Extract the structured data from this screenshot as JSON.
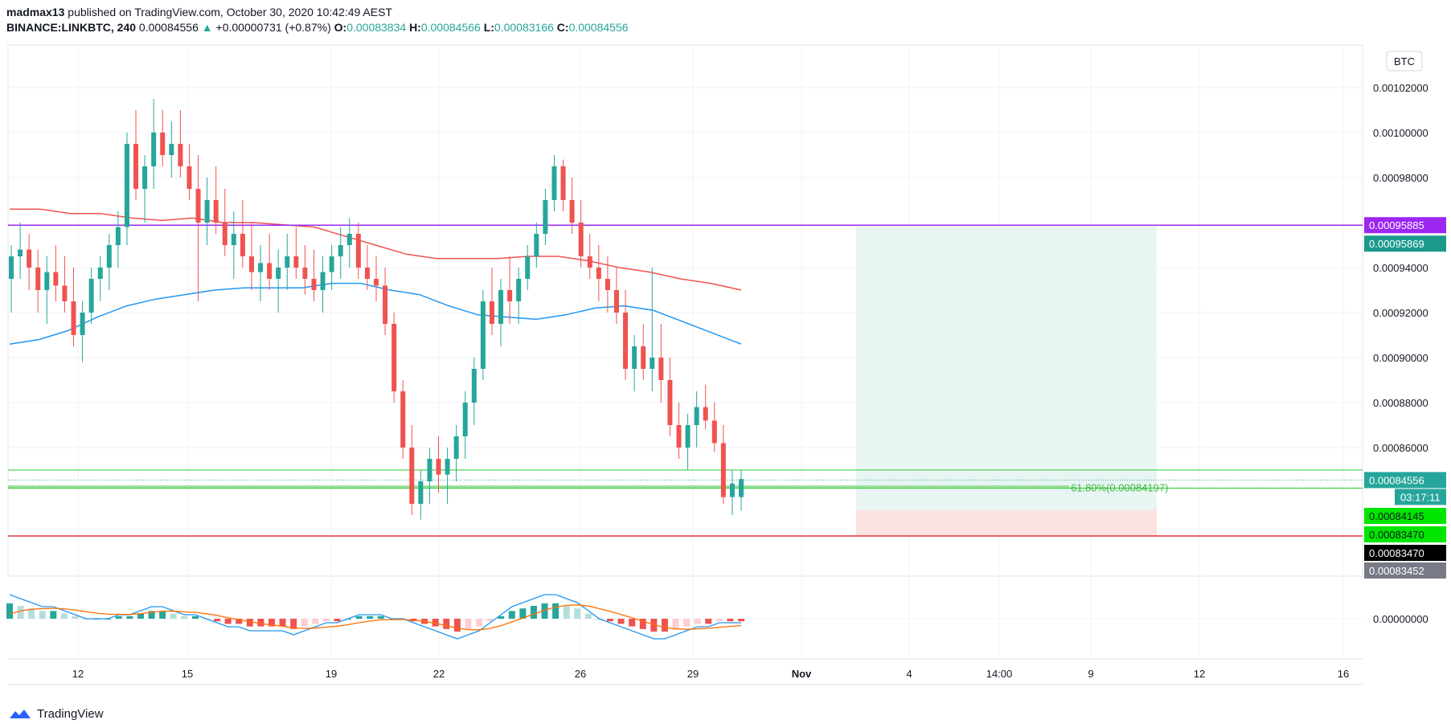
{
  "header": {
    "publisher": "madmax13",
    "published_text": "published on TradingView.com, October 30, 2020 10:42:49 AEST",
    "symbol": "BINANCE:LINKBTC, 240",
    "last": "0.00084556",
    "change": "+0.00000731 (+0.87%)",
    "o_label": "O:",
    "o": "0.00083834",
    "h_label": "H:",
    "h": "0.00084566",
    "l_label": "L:",
    "l": "0.00083166",
    "c_label": "C:",
    "c": "0.00084556"
  },
  "currency_label": "BTC",
  "footer_brand": "TradingView",
  "colors": {
    "up": "#26a69a",
    "down": "#ef5350",
    "ma_fast": "#2196f3",
    "ma_slow": "#ef5350",
    "purple": "#9c27f0",
    "green_line": "#3fd13f",
    "stop_line": "#e53935",
    "tp_zone": "#e8f5f2",
    "sl_zone": "#fde2e2"
  },
  "chart_data": {
    "type": "candlestick",
    "ylim": [
      0.00082,
      0.00104
    ],
    "y_ticks": [
      "0.00102000",
      "0.00100000",
      "0.00098000",
      "0.00094000",
      "0.00092000",
      "0.00090000",
      "0.00088000",
      "0.00086000"
    ],
    "x_ticks": [
      "12",
      "15",
      "19",
      "22",
      "26",
      "29",
      "Nov",
      "4",
      "14:00",
      "9",
      "12",
      "16"
    ],
    "ohlc": [
      [
        0.000935,
        0.00095,
        0.00092,
        0.000945
      ],
      [
        0.000945,
        0.00096,
        0.000935,
        0.000948
      ],
      [
        0.000948,
        0.000955,
        0.00093,
        0.00094
      ],
      [
        0.00094,
        0.000948,
        0.00092,
        0.00093
      ],
      [
        0.00093,
        0.000945,
        0.000915,
        0.000938
      ],
      [
        0.000938,
        0.00095,
        0.000925,
        0.000932
      ],
      [
        0.000932,
        0.000945,
        0.00092,
        0.000925
      ],
      [
        0.000925,
        0.00094,
        0.000905,
        0.00091
      ],
      [
        0.00091,
        0.000925,
        0.000898,
        0.00092
      ],
      [
        0.00092,
        0.00094,
        0.000915,
        0.000935
      ],
      [
        0.000935,
        0.000945,
        0.000925,
        0.00094
      ],
      [
        0.00094,
        0.000955,
        0.00093,
        0.00095
      ],
      [
        0.00095,
        0.000965,
        0.00094,
        0.000958
      ],
      [
        0.000958,
        0.001,
        0.00095,
        0.000995
      ],
      [
        0.000995,
        0.00101,
        0.00097,
        0.000975
      ],
      [
        0.000975,
        0.00099,
        0.00096,
        0.000985
      ],
      [
        0.000985,
        0.001015,
        0.000975,
        0.001
      ],
      [
        0.001,
        0.00101,
        0.000985,
        0.00099
      ],
      [
        0.00099,
        0.001005,
        0.00098,
        0.000995
      ],
      [
        0.000995,
        0.00101,
        0.00098,
        0.000985
      ],
      [
        0.000985,
        0.000995,
        0.00097,
        0.000975
      ],
      [
        0.000975,
        0.00099,
        0.000925,
        0.00096
      ],
      [
        0.00096,
        0.00098,
        0.00095,
        0.00097
      ],
      [
        0.00097,
        0.000985,
        0.000955,
        0.00096
      ],
      [
        0.00096,
        0.000975,
        0.000945,
        0.00095
      ],
      [
        0.00095,
        0.000965,
        0.000935,
        0.000955
      ],
      [
        0.000955,
        0.00097,
        0.00094,
        0.000945
      ],
      [
        0.000945,
        0.00096,
        0.00093,
        0.000938
      ],
      [
        0.000938,
        0.00095,
        0.000925,
        0.000942
      ],
      [
        0.000942,
        0.000955,
        0.00093,
        0.000935
      ],
      [
        0.000935,
        0.000948,
        0.00092,
        0.00094
      ],
      [
        0.00094,
        0.000955,
        0.00093,
        0.000945
      ],
      [
        0.000945,
        0.000958,
        0.000935,
        0.00094
      ],
      [
        0.00094,
        0.00095,
        0.000928,
        0.000935
      ],
      [
        0.000935,
        0.000948,
        0.000925,
        0.00093
      ],
      [
        0.00093,
        0.000945,
        0.00092,
        0.000938
      ],
      [
        0.000938,
        0.00095,
        0.00093,
        0.000945
      ],
      [
        0.000945,
        0.000958,
        0.000935,
        0.00095
      ],
      [
        0.00095,
        0.000962,
        0.00094,
        0.000955
      ],
      [
        0.000955,
        0.00096,
        0.000935,
        0.00094
      ],
      [
        0.00094,
        0.00095,
        0.00093,
        0.000935
      ],
      [
        0.000935,
        0.000945,
        0.000925,
        0.000932
      ],
      [
        0.000932,
        0.00094,
        0.00091,
        0.000915
      ],
      [
        0.000915,
        0.00092,
        0.00088,
        0.000885
      ],
      [
        0.000885,
        0.00089,
        0.000855,
        0.00086
      ],
      [
        0.00086,
        0.00087,
        0.00083,
        0.000835
      ],
      [
        0.000835,
        0.00085,
        0.000828,
        0.000845
      ],
      [
        0.000845,
        0.00086,
        0.000835,
        0.000855
      ],
      [
        0.000855,
        0.000865,
        0.00084,
        0.000848
      ],
      [
        0.000848,
        0.00086,
        0.000835,
        0.000855
      ],
      [
        0.000855,
        0.00087,
        0.000845,
        0.000865
      ],
      [
        0.000865,
        0.000885,
        0.000855,
        0.00088
      ],
      [
        0.00088,
        0.0009,
        0.00087,
        0.000895
      ],
      [
        0.000895,
        0.00093,
        0.00089,
        0.000925
      ],
      [
        0.000925,
        0.00094,
        0.00091,
        0.000915
      ],
      [
        0.000915,
        0.000935,
        0.000905,
        0.00093
      ],
      [
        0.00093,
        0.000945,
        0.000915,
        0.000925
      ],
      [
        0.000925,
        0.00094,
        0.000915,
        0.000935
      ],
      [
        0.000935,
        0.00095,
        0.00093,
        0.000945
      ],
      [
        0.000945,
        0.00096,
        0.00094,
        0.000955
      ],
      [
        0.000955,
        0.000975,
        0.00095,
        0.00097
      ],
      [
        0.00097,
        0.00099,
        0.000965,
        0.000985
      ],
      [
        0.000985,
        0.000988,
        0.000965,
        0.00097
      ],
      [
        0.00097,
        0.00098,
        0.000955,
        0.00096
      ],
      [
        0.00096,
        0.00097,
        0.00094,
        0.000945
      ],
      [
        0.000945,
        0.000955,
        0.000935,
        0.00094
      ],
      [
        0.00094,
        0.00095,
        0.000925,
        0.000935
      ],
      [
        0.000935,
        0.000945,
        0.00092,
        0.00093
      ],
      [
        0.00093,
        0.00094,
        0.000915,
        0.00092
      ],
      [
        0.00092,
        0.00093,
        0.00089,
        0.000895
      ],
      [
        0.000895,
        0.00091,
        0.000885,
        0.000905
      ],
      [
        0.000905,
        0.000915,
        0.00089,
        0.000895
      ],
      [
        0.000895,
        0.00094,
        0.000885,
        0.0009
      ],
      [
        0.0009,
        0.000915,
        0.00088,
        0.00089
      ],
      [
        0.00089,
        0.0009,
        0.000865,
        0.00087
      ],
      [
        0.00087,
        0.00088,
        0.000855,
        0.00086
      ],
      [
        0.00086,
        0.000875,
        0.00085,
        0.00087
      ],
      [
        0.00087,
        0.000885,
        0.00086,
        0.000878
      ],
      [
        0.000878,
        0.000888,
        0.000868,
        0.000872
      ],
      [
        0.000872,
        0.00088,
        0.000858,
        0.000862
      ],
      [
        0.000862,
        0.00087,
        0.000835,
        0.000838
      ],
      [
        0.000838,
        0.00085,
        0.00083,
        0.000844
      ],
      [
        0.000838,
        0.00085,
        0.000832,
        0.000846
      ]
    ],
    "ma_fast": [
      0.000906,
      0.000908,
      0.000912,
      0.000918,
      0.000923,
      0.000926,
      0.000928,
      0.00093,
      0.000931,
      0.000931,
      0.000931,
      0.000933,
      0.000933,
      0.00093,
      0.000928,
      0.000923,
      0.000919,
      0.000918,
      0.000917,
      0.000919,
      0.000922,
      0.000923,
      0.000921,
      0.000916,
      0.000911,
      0.000906
    ],
    "ma_slow": [
      0.000966,
      0.000966,
      0.000964,
      0.000964,
      0.000962,
      0.000961,
      0.000962,
      0.00096,
      0.00096,
      0.000959,
      0.000958,
      0.000954,
      0.00095,
      0.000946,
      0.000944,
      0.000944,
      0.000944,
      0.000945,
      0.000945,
      0.000943,
      0.00094,
      0.000938,
      0.000935,
      0.000933,
      0.00093
    ],
    "levels": {
      "purple": "0.00095885",
      "resistance_tag": "0.00095869",
      "last_price": "0.00084556",
      "countdown": "03:17:11",
      "fib_label": "61.80%(0.00084197)",
      "fib_value": 0.00084197,
      "green2": "0.00084145",
      "green3": "0.00083470",
      "stop": "0.00083470",
      "low_tag": "0.00083452"
    },
    "macd": {
      "zero_label": "0.00000000",
      "hist": [
        6,
        5,
        4,
        3,
        3,
        2,
        1,
        0,
        0,
        0,
        1,
        1,
        2,
        3,
        3,
        2,
        1,
        1,
        0,
        -1,
        -2,
        -2,
        -3,
        -3,
        -3,
        -3,
        -4,
        -3,
        -2,
        -1,
        -1,
        0,
        1,
        1,
        1,
        0,
        0,
        -1,
        -2,
        -3,
        -4,
        -5,
        -4,
        -3,
        -1,
        1,
        3,
        4,
        5,
        6,
        6,
        5,
        4,
        2,
        0,
        -1,
        -2,
        -3,
        -4,
        -5,
        -5,
        -4,
        -3,
        -2,
        -2,
        -1,
        -1,
        -1
      ]
    }
  }
}
